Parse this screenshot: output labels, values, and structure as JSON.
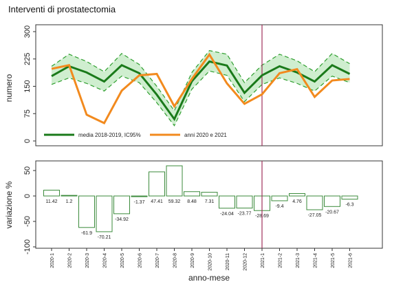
{
  "title": "Interventi di prostatectomia",
  "colors": {
    "avg": "#1a7a1a",
    "band": "#cfeecf",
    "band_line": "#2e9e2e",
    "current": "#f28a1e",
    "vline": "#a0305a",
    "bar_stroke": "#3a8a3a"
  },
  "chart_data": [
    {
      "type": "line",
      "ylabel": "numero",
      "ylim": [
        0,
        300
      ],
      "yticks": [
        "0",
        "75",
        "150",
        "225",
        "300"
      ],
      "x": [
        "2020-1",
        "2020-2",
        "2020-3",
        "2020-4",
        "2020-5",
        "2020-6",
        "2020-7",
        "2020-8",
        "2020-9",
        "2020-10",
        "2020-11",
        "2020-12",
        "2021-1",
        "2021-2",
        "2021-3",
        "2021-4",
        "2021-5",
        "2021-6"
      ],
      "series": [
        {
          "name": "media 2018-2019, IC95%",
          "values": [
            178,
            205,
            188,
            163,
            208,
            186,
            127,
            60,
            164,
            218,
            207,
            132,
            180,
            205,
            188,
            163,
            208,
            184
          ]
        },
        {
          "name": "upper",
          "values": [
            205,
            238,
            218,
            190,
            240,
            210,
            150,
            83,
            188,
            248,
            238,
            160,
            208,
            238,
            220,
            190,
            240,
            212
          ]
        },
        {
          "name": "lower",
          "values": [
            155,
            173,
            158,
            137,
            178,
            160,
            105,
            42,
            142,
            192,
            180,
            108,
            155,
            173,
            158,
            137,
            178,
            160
          ]
        },
        {
          "name": "anni 2020 e 2021",
          "values": [
            198,
            208,
            72,
            49,
            138,
            180,
            184,
            95,
            170,
            237,
            158,
            102,
            128,
            186,
            197,
            121,
            166,
            170
          ]
        }
      ],
      "legend": [
        "media 2018-2019, IC95%",
        "anni 2020 e 2021"
      ],
      "vline_at": "2021-1"
    },
    {
      "type": "bar",
      "ylabel": "variazione %",
      "xlabel": "anno-mese",
      "ylim": [
        -100,
        50
      ],
      "yticks": [
        "-100",
        "-50",
        "0",
        "50"
      ],
      "categories": [
        "2020-1",
        "2020-2",
        "2020-3",
        "2020-4",
        "2020-5",
        "2020-6",
        "2020-7",
        "2020-8",
        "2020-9",
        "2020-10",
        "2020-11",
        "2020-12",
        "2021-1",
        "2021-2",
        "2021-3",
        "2021-4",
        "2021-5",
        "2021-6"
      ],
      "values": [
        11.42,
        1.2,
        -61.9,
        -70.21,
        -34.92,
        -1.37,
        47.41,
        59.32,
        8.48,
        7.31,
        -24.04,
        -23.77,
        -28.69,
        -9.4,
        4.76,
        -27.05,
        -20.67,
        -6.3
      ],
      "labels": [
        "11.42",
        "1.2",
        "-61.9",
        "-70.21",
        "-34.92",
        "-1.37",
        "47.41",
        "59.32",
        "8.48",
        "7.31",
        "-24.04",
        "-23.77",
        "-28.69",
        "-9.4",
        "4.76",
        "-27.05",
        "-20.67",
        "-6.3"
      ],
      "vline_at": "2021-1"
    }
  ]
}
